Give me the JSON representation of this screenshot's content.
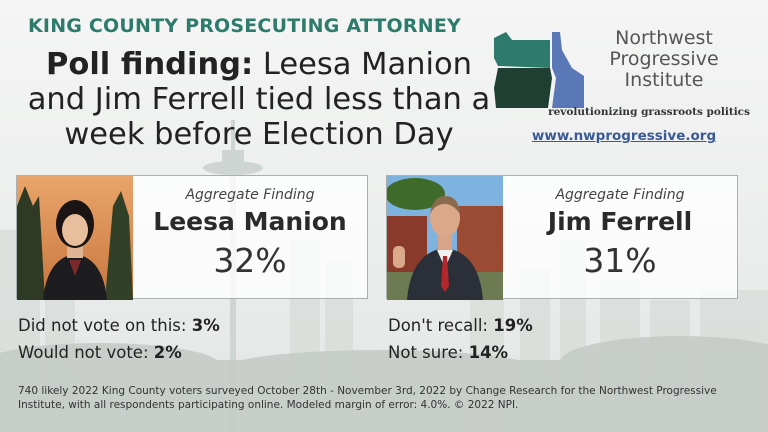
{
  "kicker": "KING COUNTY PROSECUTING ATTORNEY",
  "headline": {
    "bold": "Poll finding:",
    "rest": " Leesa Manion and Jim Ferrell tied less than a week before Election Day"
  },
  "logo": {
    "line1": "Northwest",
    "line2": "Progressive",
    "line3": "Institute",
    "tagline": "revolutionizing grassroots politics",
    "url": "www.nwprogressive.org",
    "colors": {
      "washington": "#2e7b6c",
      "oregon": "#1f3f33",
      "idaho": "#5a78b5"
    }
  },
  "chart_data": {
    "type": "table",
    "title": "Poll finding: Leesa Manion and Jim Ferrell tied less than a week before Election Day",
    "candidates": [
      {
        "label": "Aggregate Finding",
        "name": "Leesa Manion",
        "value": 32,
        "display": "32%"
      },
      {
        "label": "Aggregate Finding",
        "name": "Jim Ferrell",
        "value": 31,
        "display": "31%"
      }
    ],
    "other_responses": [
      {
        "label": "Did not vote on this:",
        "value": 3,
        "display": "3%"
      },
      {
        "label": "Would not vote:",
        "value": 2,
        "display": "2%"
      },
      {
        "label": "Don't recall:",
        "value": 19,
        "display": "19%"
      },
      {
        "label": "Not sure:",
        "value": 14,
        "display": "14%"
      }
    ]
  },
  "footnote": "740 likely 2022 King County voters surveyed October 28th - November 3rd, 2022 by Change Research for the Northwest Progressive Institute, with all respondents participating online. Modeled margin of error: 4.0%. © 2022 NPI."
}
